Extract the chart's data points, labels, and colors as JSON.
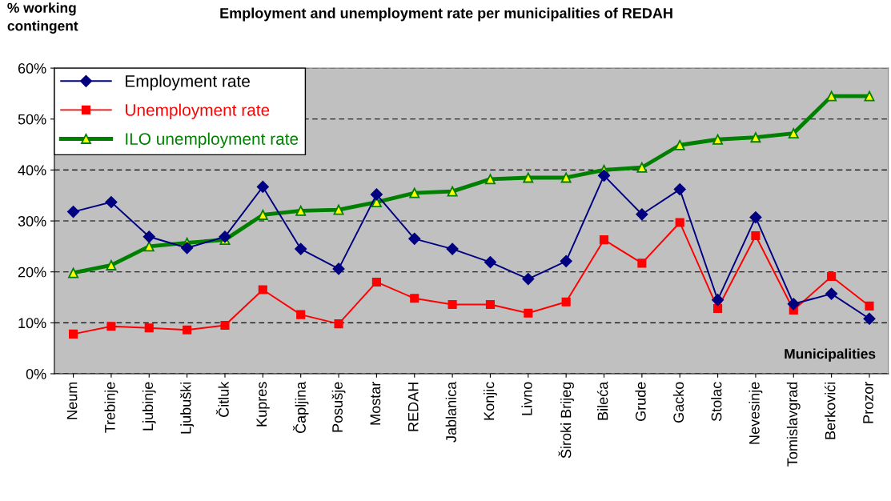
{
  "chart_data": {
    "type": "line",
    "title": "Employment and unemployment rate per municipalities of REDAH",
    "ylabel": "% working\ncontingent",
    "xlabel": "Municipalities",
    "categories": [
      "Neum",
      "Trebinje",
      "Ljubinje",
      "Ljubuški",
      "Čitluk",
      "Kupres",
      "Čapljina",
      "Posušje",
      "Mostar",
      "REDAH",
      "Jablanica",
      "Konjic",
      "Livno",
      "Široki Brijeg",
      "Bileća",
      "Grude",
      "Gacko",
      "Stolac",
      "Nevesinje",
      "Tomislavgrad",
      "Berkovići",
      "Prozor"
    ],
    "series": [
      {
        "name": "Employment rate",
        "color": "#000080",
        "marker": "diamond",
        "values": [
          31.8,
          33.7,
          26.9,
          24.7,
          26.9,
          36.7,
          24.5,
          20.6,
          35.2,
          26.5,
          24.5,
          21.9,
          18.6,
          22.1,
          38.9,
          31.3,
          36.2,
          14.5,
          30.7,
          13.7,
          15.7,
          10.8
        ]
      },
      {
        "name": "Unemployment rate",
        "color": "#ff0000",
        "marker": "square",
        "values": [
          7.8,
          9.3,
          9.0,
          8.6,
          9.5,
          16.5,
          11.6,
          9.8,
          18.0,
          14.8,
          13.6,
          13.6,
          11.9,
          14.1,
          26.3,
          21.7,
          29.7,
          12.8,
          27.1,
          12.5,
          19.1,
          13.3
        ]
      },
      {
        "name": "ILO unemployment rate",
        "color": "#008000",
        "marker": "triangle",
        "values": [
          19.8,
          21.3,
          25.0,
          25.7,
          26.3,
          31.2,
          32.0,
          32.2,
          33.7,
          35.5,
          35.8,
          38.2,
          38.5,
          38.5,
          40.0,
          40.5,
          44.9,
          46.0,
          46.4,
          47.2,
          54.5,
          54.5
        ]
      }
    ],
    "ylim": [
      0,
      60
    ],
    "yticks": [
      {
        "value": 0,
        "label": "0%"
      },
      {
        "value": 10,
        "label": "10%"
      },
      {
        "value": 20,
        "label": "20%"
      },
      {
        "value": 30,
        "label": "30%"
      },
      {
        "value": 40,
        "label": "40%"
      },
      {
        "value": 50,
        "label": "50%"
      },
      {
        "value": 60,
        "label": "60%"
      }
    ],
    "grid": "y",
    "legend": "top left",
    "line_style": "solid"
  }
}
